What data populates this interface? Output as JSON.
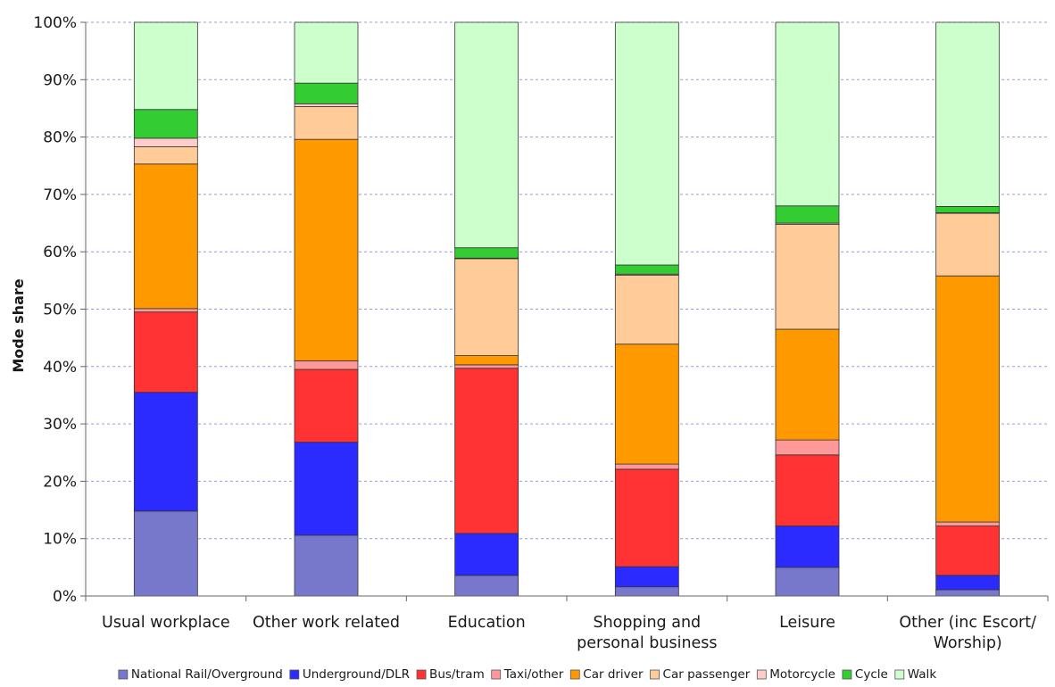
{
  "chart_data": {
    "type": "bar",
    "stacked": true,
    "categories": [
      [
        "Usual workplace"
      ],
      [
        "Other work related"
      ],
      [
        "Education"
      ],
      [
        "Shopping and",
        "personal business"
      ],
      [
        "Leisure"
      ],
      [
        "Other (inc Escort/",
        "Worship)"
      ]
    ],
    "ylabel": "Mode share",
    "ylim": [
      0,
      100
    ],
    "yticks": [
      "0%",
      "10%",
      "20%",
      "30%",
      "40%",
      "50%",
      "60%",
      "70%",
      "80%",
      "90%",
      "100%"
    ],
    "grid": true,
    "legend_position": "bottom",
    "series": [
      {
        "name": "National Rail/Overground",
        "color": "#7777cc",
        "values": [
          14.8,
          10.6,
          3.6,
          1.6,
          5.0,
          1.1
        ]
      },
      {
        "name": "Underground/DLR",
        "color": "#2b2bff",
        "values": [
          20.7,
          16.2,
          7.3,
          3.5,
          7.2,
          2.5
        ]
      },
      {
        "name": "Bus/tram",
        "color": "#ff3333",
        "values": [
          14.0,
          12.7,
          28.8,
          17.0,
          12.4,
          8.6
        ]
      },
      {
        "name": "Taxi/other",
        "color": "#ff9999",
        "values": [
          0.6,
          1.5,
          0.6,
          0.9,
          2.6,
          0.7
        ]
      },
      {
        "name": "Car driver",
        "color": "#ff9900",
        "values": [
          25.2,
          38.6,
          1.6,
          20.9,
          19.3,
          42.9
        ]
      },
      {
        "name": "Car passenger",
        "color": "#ffcc99",
        "values": [
          3.0,
          5.7,
          16.9,
          12.0,
          18.3,
          10.9
        ]
      },
      {
        "name": "Motorcycle",
        "color": "#ffcccc",
        "values": [
          1.5,
          0.5,
          0.1,
          0.2,
          0.2,
          0.1
        ]
      },
      {
        "name": "Cycle",
        "color": "#33cc33",
        "values": [
          5.0,
          3.6,
          1.8,
          1.6,
          3.0,
          1.1
        ]
      },
      {
        "name": "Walk",
        "color": "#ccffcc",
        "values": [
          15.2,
          10.6,
          39.3,
          42.3,
          32.0,
          32.1
        ]
      }
    ]
  }
}
